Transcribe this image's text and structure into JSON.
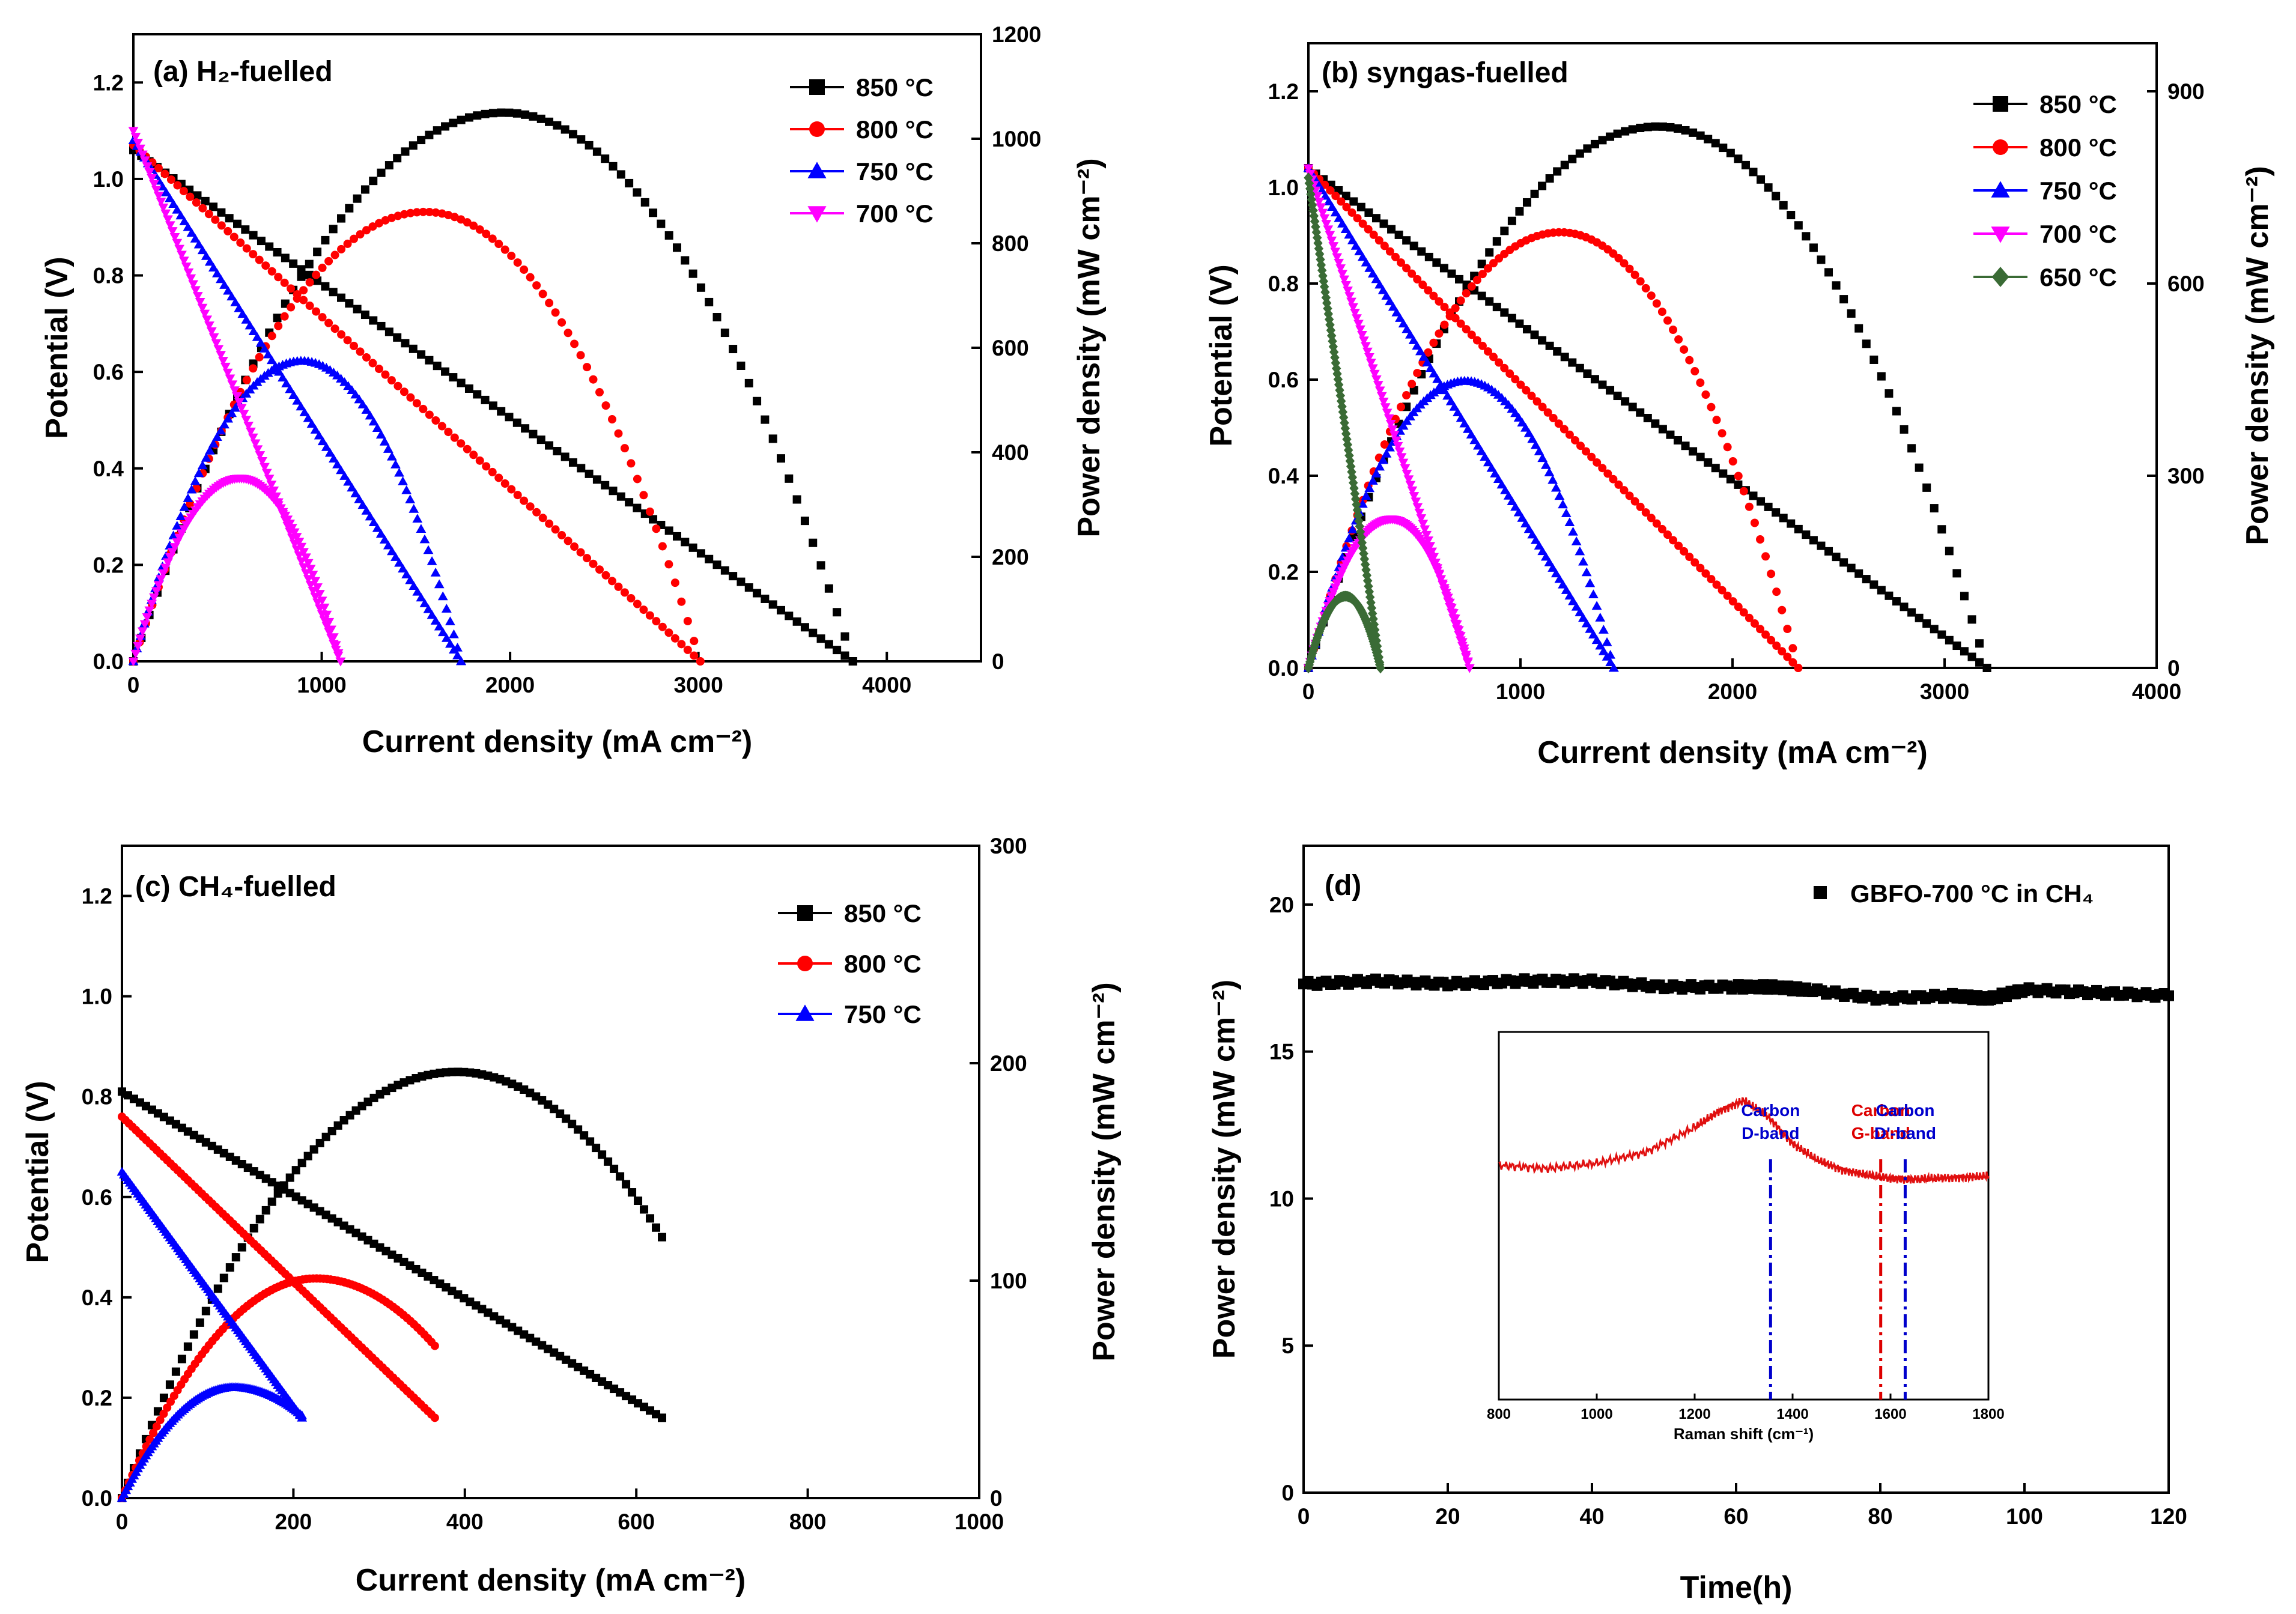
{
  "colors": {
    "black": "#000000",
    "red": "#ff0000",
    "blue": "#0000ff",
    "magenta": "#ff00ff",
    "green": "#3a6b35",
    "inset_red": "#e01010",
    "band_blue": "#0000cc",
    "band_red": "#dd0000"
  },
  "chart_data": [
    {
      "id": "a",
      "type": "line",
      "title": "(a) H₂-fuelled",
      "xlabel": "Current density (mA cm⁻²)",
      "ylabel_left": "Potential (V)",
      "ylabel_right": "Power density (mW cm⁻²)",
      "xlim": [
        0,
        4500
      ],
      "ylim_left": [
        0,
        1.3
      ],
      "ylim_right": [
        0,
        1200
      ],
      "xticks": [
        "0",
        "1000",
        "2000",
        "3000",
        "4000"
      ],
      "yticks_left": [
        "0.0",
        "0.2",
        "0.4",
        "0.6",
        "0.8",
        "1.0",
        "1.2"
      ],
      "yticks_right": [
        "0",
        "200",
        "400",
        "600",
        "800",
        "1000",
        "1200"
      ],
      "legend_position": "top-right",
      "series": [
        {
          "name": "850 °C",
          "color": "#000000",
          "marker": "square",
          "ocv": 1.06,
          "max_current": 3820,
          "peak_power": 1050
        },
        {
          "name": "800 °C",
          "color": "#ff0000",
          "marker": "circle",
          "ocv": 1.07,
          "max_current": 3010,
          "peak_power": 860
        },
        {
          "name": "750 °C",
          "color": "#0000ff",
          "marker": "triangle-up",
          "ocv": 1.08,
          "max_current": 1740,
          "peak_power": 575
        },
        {
          "name": "700 °C",
          "color": "#ff00ff",
          "marker": "triangle-down",
          "ocv": 1.1,
          "max_current": 1100,
          "peak_power": 350
        }
      ]
    },
    {
      "id": "b",
      "type": "line",
      "title": "(b) syngas-fuelled",
      "xlabel": "Current density (mA cm⁻²)",
      "ylabel_left": "Potential (V)",
      "ylabel_right": "Power density (mW cm⁻²)",
      "xlim": [
        0,
        4000
      ],
      "ylim_left": [
        0,
        1.3
      ],
      "ylim_right": [
        0,
        975
      ],
      "xticks": [
        "0",
        "1000",
        "2000",
        "3000",
        "4000"
      ],
      "yticks_left": [
        "0.0",
        "0.2",
        "0.4",
        "0.6",
        "0.8",
        "1.0",
        "1.2"
      ],
      "yticks_right": [
        "0",
        "300",
        "600",
        "900"
      ],
      "legend_position": "top-right",
      "series": [
        {
          "name": "850 °C",
          "color": "#000000",
          "marker": "square",
          "ocv": 1.04,
          "max_current": 3200,
          "peak_power": 845
        },
        {
          "name": "800 °C",
          "color": "#ff0000",
          "marker": "circle",
          "ocv": 1.04,
          "max_current": 2310,
          "peak_power": 680
        },
        {
          "name": "750 °C",
          "color": "#0000ff",
          "marker": "triangle-up",
          "ocv": 1.04,
          "max_current": 1440,
          "peak_power": 448
        },
        {
          "name": "700 °C",
          "color": "#ff00ff",
          "marker": "triangle-down",
          "ocv": 1.04,
          "max_current": 760,
          "peak_power": 232
        },
        {
          "name": "650 °C",
          "color": "#3a6b35",
          "marker": "diamond",
          "ocv": 1.02,
          "max_current": 340,
          "peak_power": 112
        }
      ]
    },
    {
      "id": "c",
      "type": "line",
      "title": "(c) CH₄-fuelled",
      "xlabel": "Current density (mA cm⁻²)",
      "ylabel_left": "Potential (V)",
      "ylabel_right": "Power density (mW cm⁻²)",
      "xlim": [
        0,
        1000
      ],
      "ylim_left": [
        0,
        1.3
      ],
      "ylim_right": [
        0,
        300
      ],
      "xticks": [
        "0",
        "200",
        "400",
        "600",
        "800",
        "1000"
      ],
      "yticks_left": [
        "0.0",
        "0.2",
        "0.4",
        "0.6",
        "0.8",
        "1.0",
        "1.2"
      ],
      "yticks_right": [
        "0",
        "100",
        "200",
        "300"
      ],
      "legend_position": "top-right",
      "series": [
        {
          "name": "850 °C",
          "color": "#000000",
          "marker": "square",
          "ocv": 0.81,
          "min_v": 0.16,
          "max_current": 630,
          "peak_power": 196,
          "power_end": 120
        },
        {
          "name": "800 °C",
          "color": "#ff0000",
          "marker": "circle",
          "ocv": 0.76,
          "min_v": 0.16,
          "max_current": 365,
          "peak_power": 101,
          "power_end": 70
        },
        {
          "name": "750 °C",
          "color": "#0000ff",
          "marker": "triangle-up",
          "ocv": 0.65,
          "min_v": 0.16,
          "max_current": 210,
          "peak_power": 51,
          "power_end": 38
        }
      ]
    },
    {
      "id": "d",
      "type": "scatter",
      "title": "(d)",
      "xlabel": "Time(h)",
      "ylabel": "Power density (mW cm⁻²)",
      "xlim": [
        0,
        120
      ],
      "ylim": [
        0,
        22
      ],
      "xticks": [
        "0",
        "20",
        "40",
        "60",
        "80",
        "100",
        "120"
      ],
      "yticks": [
        "0",
        "5",
        "10",
        "15",
        "20"
      ],
      "legend": "GBFO-700 °C in CH₄",
      "legend_position": "top-right",
      "series": [
        {
          "name": "GBFO-700 °C in CH₄",
          "color": "#000000",
          "marker": "square",
          "x": [
            0,
            10,
            20,
            30,
            40,
            50,
            60,
            65,
            70,
            80,
            90,
            95,
            100,
            110,
            120
          ],
          "y": [
            17.3,
            17.4,
            17.3,
            17.4,
            17.4,
            17.2,
            17.2,
            17.2,
            17.1,
            16.8,
            16.9,
            16.8,
            17.1,
            17.0,
            16.9
          ]
        }
      ],
      "inset": {
        "type": "line",
        "xlabel": "Raman shift (cm⁻¹)",
        "xlim": [
          800,
          1800
        ],
        "xticks": [
          "800",
          "1000",
          "1200",
          "1400",
          "1600",
          "1800"
        ],
        "spectrum": {
          "x": [
            800,
            900,
            1000,
            1100,
            1200,
            1250,
            1300,
            1350,
            1400,
            1450,
            1500,
            1550,
            1600,
            1650,
            1700,
            1750,
            1800
          ],
          "y": [
            0.5,
            0.47,
            0.52,
            0.62,
            0.85,
            1.0,
            1.1,
            0.95,
            0.7,
            0.55,
            0.46,
            0.41,
            0.38,
            0.37,
            0.38,
            0.39,
            0.4
          ]
        },
        "bands": [
          {
            "label_top": "Carbon",
            "label_bottom": "D-band",
            "x": 1355,
            "color": "#0000cc"
          },
          {
            "label_top": "Carbon",
            "label_bottom": "G-band",
            "x": 1580,
            "color": "#dd0000"
          },
          {
            "label_top": "Carbon",
            "label_bottom": "D'-band",
            "x": 1630,
            "color": "#0000cc"
          }
        ]
      }
    }
  ]
}
